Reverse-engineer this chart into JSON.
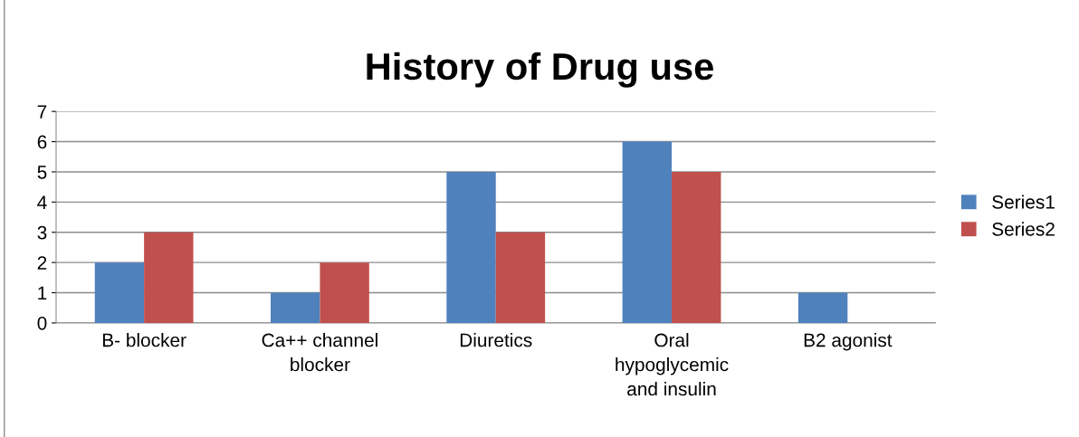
{
  "chart_data": {
    "type": "bar",
    "title": "History of Drug use",
    "categories": [
      "B- blocker",
      "Ca++ channel\nblocker",
      "Diuretics",
      "Oral\nhypoglycemic\nand insulin",
      "B2 agonist"
    ],
    "series": [
      {
        "name": "Series1",
        "color": "#4f81bd",
        "values": [
          2,
          1,
          5,
          6,
          1
        ]
      },
      {
        "name": "Series2",
        "color": "#c0504d",
        "values": [
          3,
          2,
          3,
          5,
          0
        ]
      }
    ],
    "ylim": [
      0,
      7
    ],
    "yticks": [
      0,
      1,
      2,
      3,
      4,
      5,
      6,
      7
    ],
    "grid": "y",
    "legend": "right"
  }
}
